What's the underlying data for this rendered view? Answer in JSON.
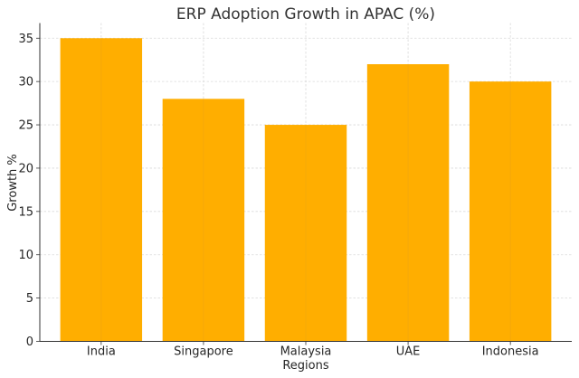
{
  "chart_data": {
    "type": "bar",
    "title": "ERP Adoption Growth in APAC (%)",
    "xlabel": "Regions",
    "ylabel": "Growth %",
    "categories": [
      "India",
      "Singapore",
      "Malaysia",
      "UAE",
      "Indonesia"
    ],
    "values": [
      35,
      28,
      25,
      32,
      30
    ],
    "ylim": [
      0,
      36.75
    ],
    "yticks": [
      0,
      5,
      10,
      15,
      20,
      25,
      30,
      35
    ],
    "grid": true,
    "bar_color": "#FFAE00",
    "legend": null
  }
}
